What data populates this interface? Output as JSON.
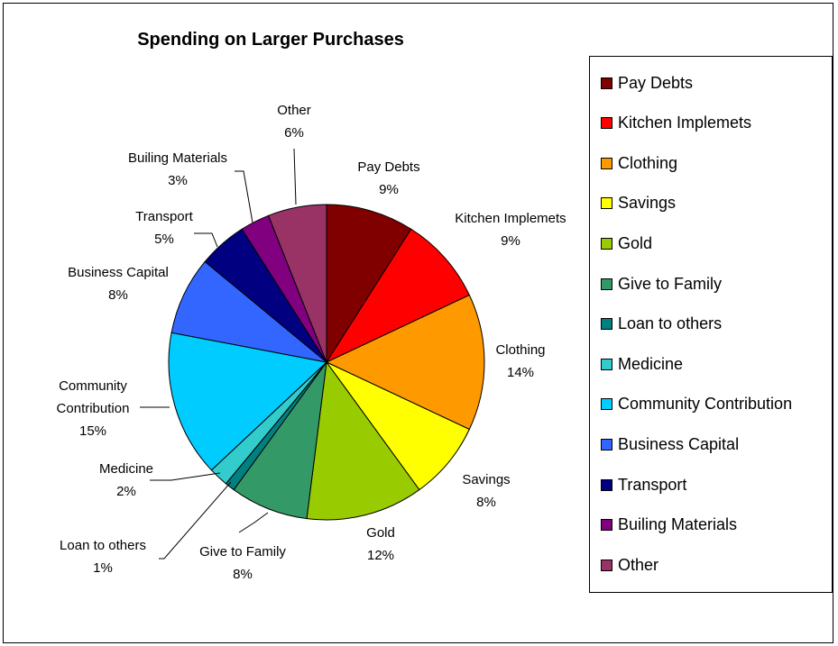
{
  "chart_data": {
    "type": "pie",
    "title": "Spending on Larger Purchases",
    "legend_position": "right",
    "slices": [
      {
        "label": "Pay Debts",
        "label_lines": [
          "Pay Debts"
        ],
        "value": 9,
        "display": "9%",
        "color": "#800000"
      },
      {
        "label": "Kitchen Implemets",
        "label_lines": [
          "Kitchen Implemets"
        ],
        "value": 9,
        "display": "9%",
        "color": "#ff0000"
      },
      {
        "label": "Clothing",
        "label_lines": [
          "Clothing"
        ],
        "value": 14,
        "display": "14%",
        "color": "#ff9900"
      },
      {
        "label": "Savings",
        "label_lines": [
          "Savings"
        ],
        "value": 8,
        "display": "8%",
        "color": "#ffff00"
      },
      {
        "label": "Gold",
        "label_lines": [
          "Gold"
        ],
        "value": 12,
        "display": "12%",
        "color": "#99cc00"
      },
      {
        "label": "Give to Family",
        "label_lines": [
          "Give to Family"
        ],
        "value": 8,
        "display": "8%",
        "color": "#339966"
      },
      {
        "label": "Loan to others",
        "label_lines": [
          "Loan to others"
        ],
        "value": 1,
        "display": "1%",
        "color": "#008080"
      },
      {
        "label": "Medicine",
        "label_lines": [
          "Medicine"
        ],
        "value": 2,
        "display": "2%",
        "color": "#33cccc"
      },
      {
        "label": "Community Contribution",
        "label_lines": [
          "Community",
          "Contribution"
        ],
        "value": 15,
        "display": "15%",
        "color": "#00ccff"
      },
      {
        "label": "Business Capital",
        "label_lines": [
          "Business Capital"
        ],
        "value": 8,
        "display": "8%",
        "color": "#3366ff"
      },
      {
        "label": "Transport",
        "label_lines": [
          "Transport"
        ],
        "value": 5,
        "display": "5%",
        "color": "#000080"
      },
      {
        "label": "Builing Materials",
        "label_lines": [
          "Builing Materials"
        ],
        "value": 3,
        "display": "3%",
        "color": "#800080"
      },
      {
        "label": "Other",
        "label_lines": [
          "Other"
        ],
        "value": 6,
        "display": "6%",
        "color": "#993366"
      }
    ]
  }
}
